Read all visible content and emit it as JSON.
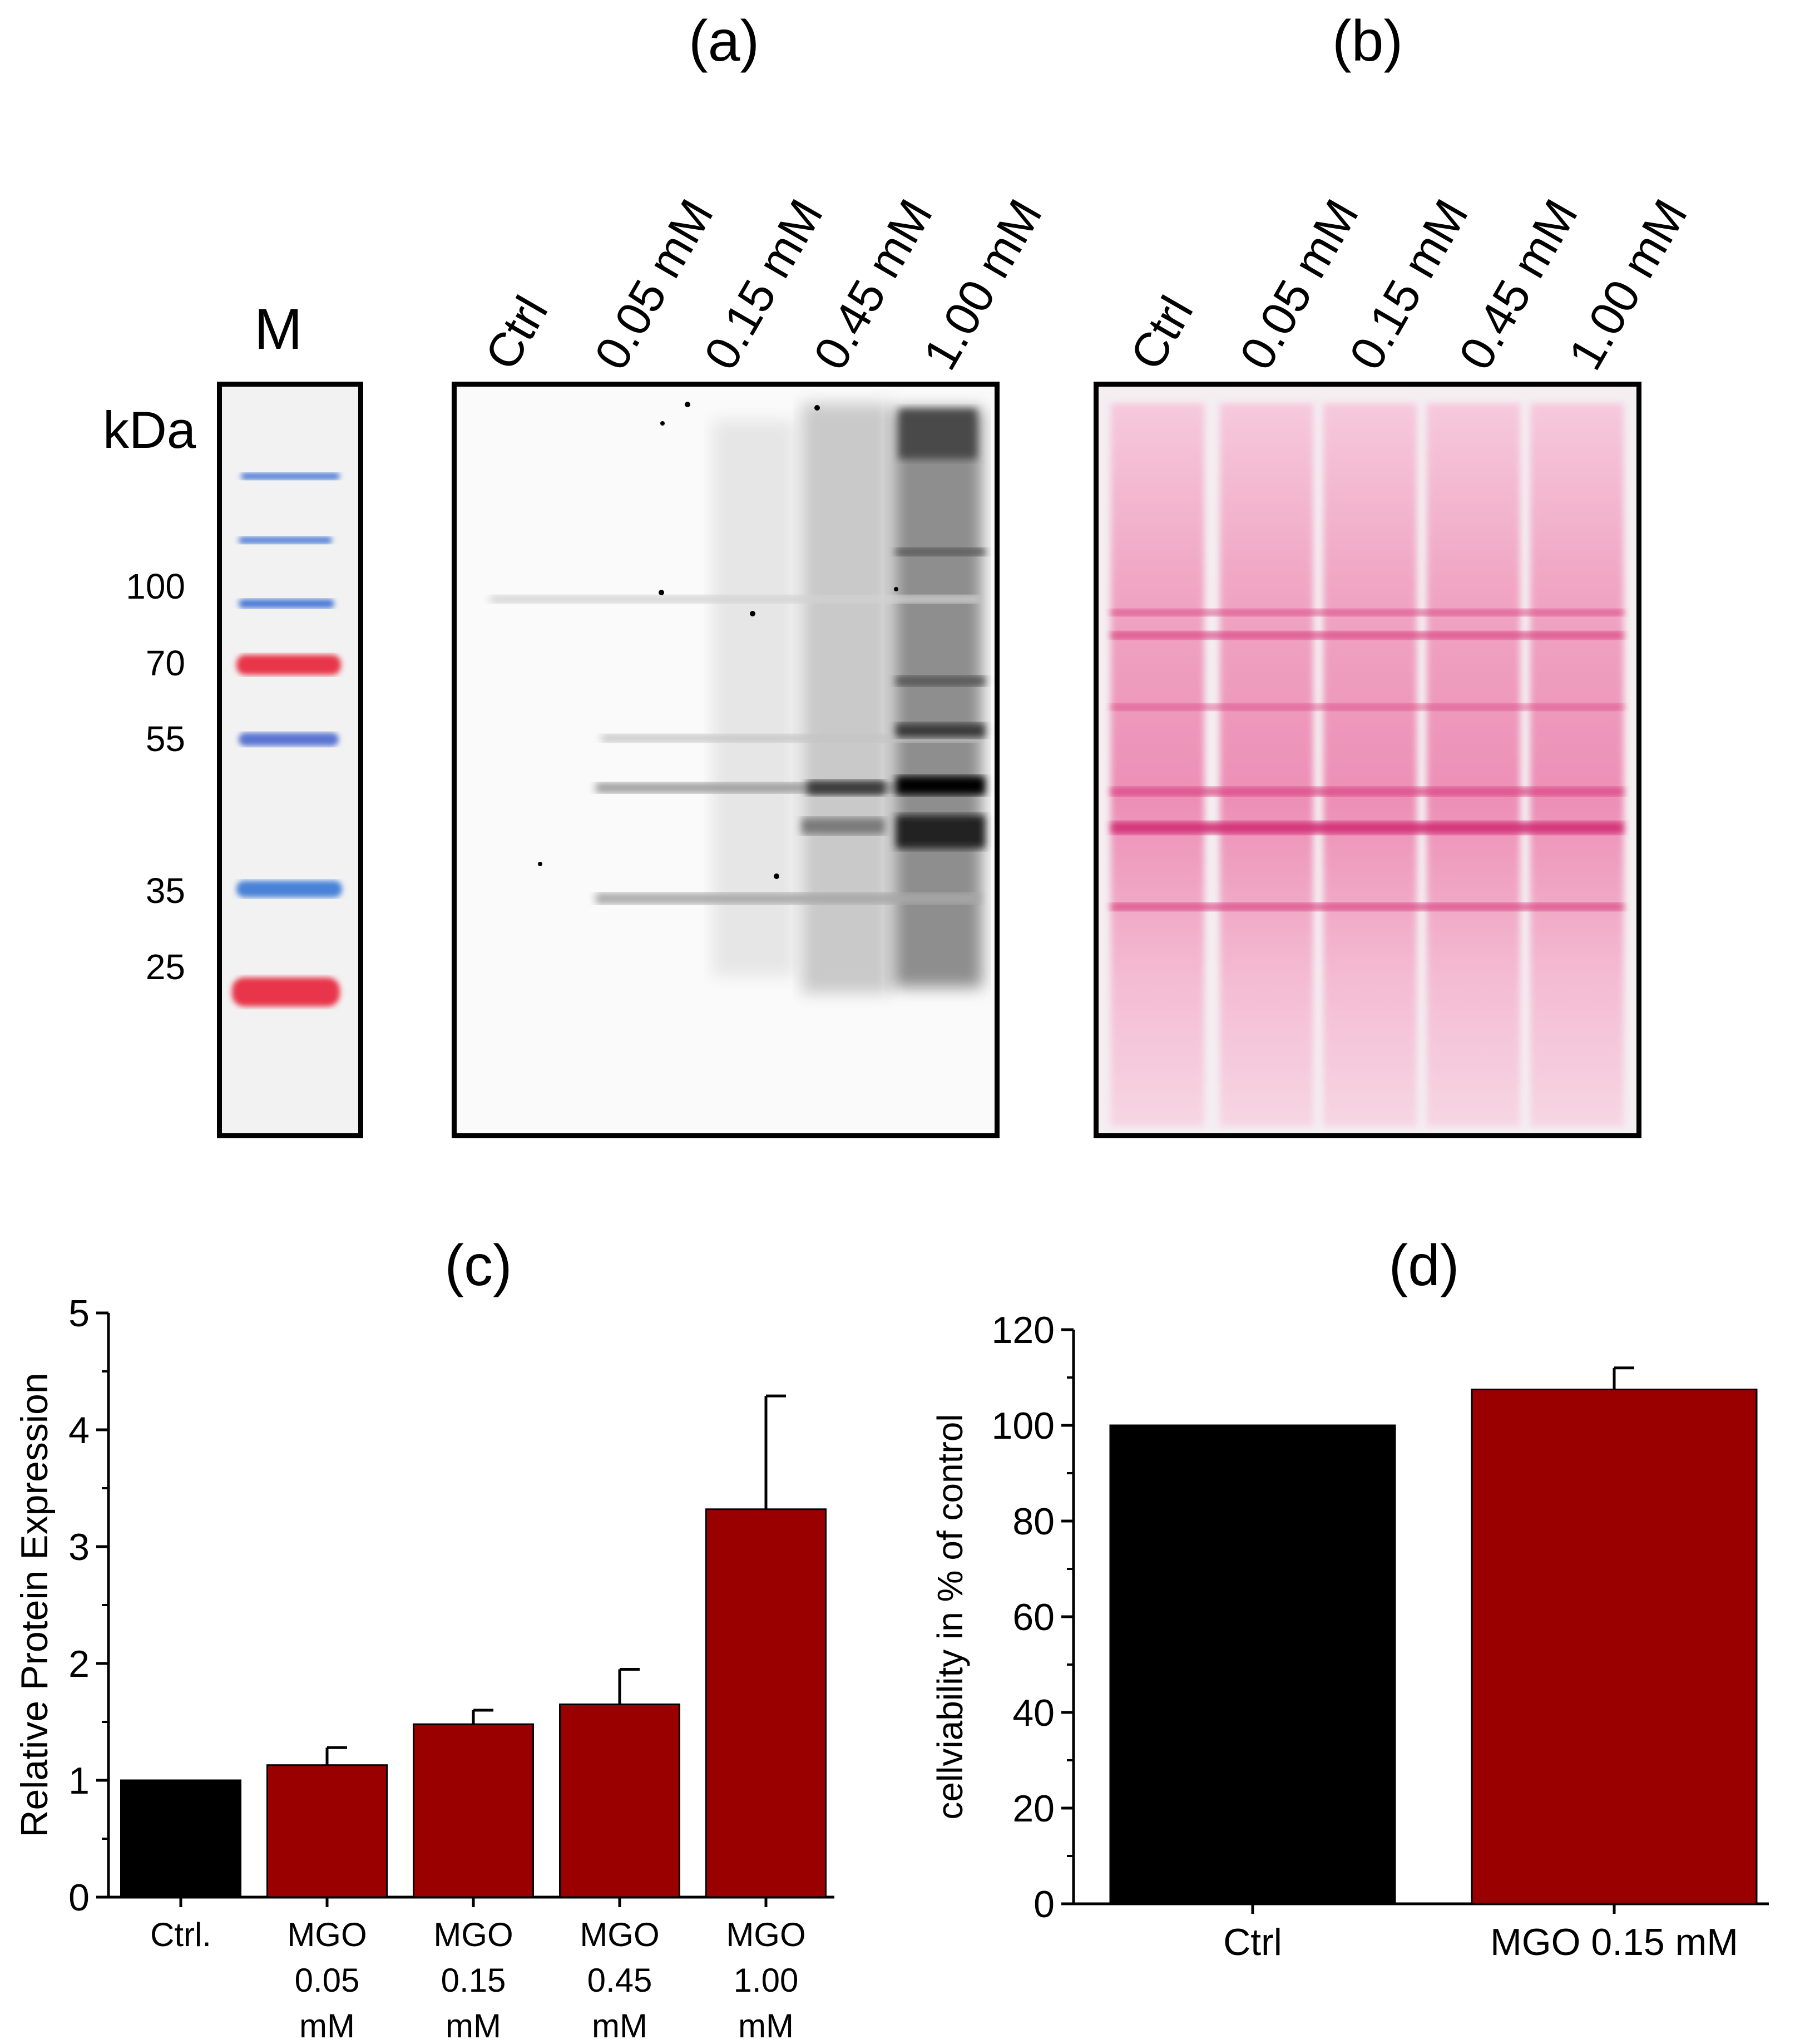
{
  "panel_labels": {
    "a": "(a)",
    "b": "(b)",
    "c": "(c)",
    "d": "(d)"
  },
  "marker": {
    "title": "M",
    "unit": "kDa",
    "kda_labels": [
      "100",
      "70",
      "55",
      "35",
      "25"
    ]
  },
  "blot_a": {
    "lanes": [
      "Ctrl",
      "0.05 mM",
      "0.15 mM",
      "0.45 mM",
      "1.00 mM"
    ]
  },
  "blot_b": {
    "lanes": [
      "Ctrl",
      "0.05 mM",
      "0.15 mM",
      "0.45 mM",
      "1.00 mM"
    ]
  },
  "colors": {
    "ctrl_bar": "#000000",
    "mgo_bar": "#9b0000",
    "ponceau": "#e0307a",
    "marker_blue": "#4a78d6",
    "marker_red": "#e8364a"
  },
  "chart_data": [
    {
      "id": "c",
      "type": "bar",
      "title": "(c)",
      "ylabel": "Relative Protein Expression",
      "xlabel": "",
      "ylim": [
        0,
        5
      ],
      "yticks": [
        "0",
        "1",
        "2",
        "3",
        "4",
        "5"
      ],
      "categories": [
        "Ctrl.",
        "MGO 0.05 mM",
        "MGO 0.15 mM",
        "MGO 0.45 mM",
        "MGO 1.00 mM"
      ],
      "category_lines": [
        [
          "Ctrl."
        ],
        [
          "MGO",
          "0.05",
          "mM"
        ],
        [
          "MGO",
          "0.15",
          "mM"
        ],
        [
          "MGO",
          "0.45",
          "mM"
        ],
        [
          "MGO",
          "1.00",
          "mM"
        ]
      ],
      "values": [
        1.0,
        1.13,
        1.48,
        1.65,
        3.32
      ],
      "errors": [
        0,
        0.15,
        0.12,
        0.3,
        0.97
      ]
    },
    {
      "id": "d",
      "type": "bar",
      "title": "(d)",
      "ylabel": "cellviability in % of control",
      "xlabel": "",
      "ylim": [
        0,
        120
      ],
      "yticks": [
        "0",
        "20",
        "40",
        "60",
        "80",
        "100",
        "120"
      ],
      "categories": [
        "Ctrl",
        "MGO 0.15 mM"
      ],
      "category_lines": [
        [
          "Ctrl"
        ],
        [
          "MGO 0.15 mM"
        ]
      ],
      "values": [
        100,
        107.5
      ],
      "errors": [
        0,
        4.5
      ]
    }
  ]
}
